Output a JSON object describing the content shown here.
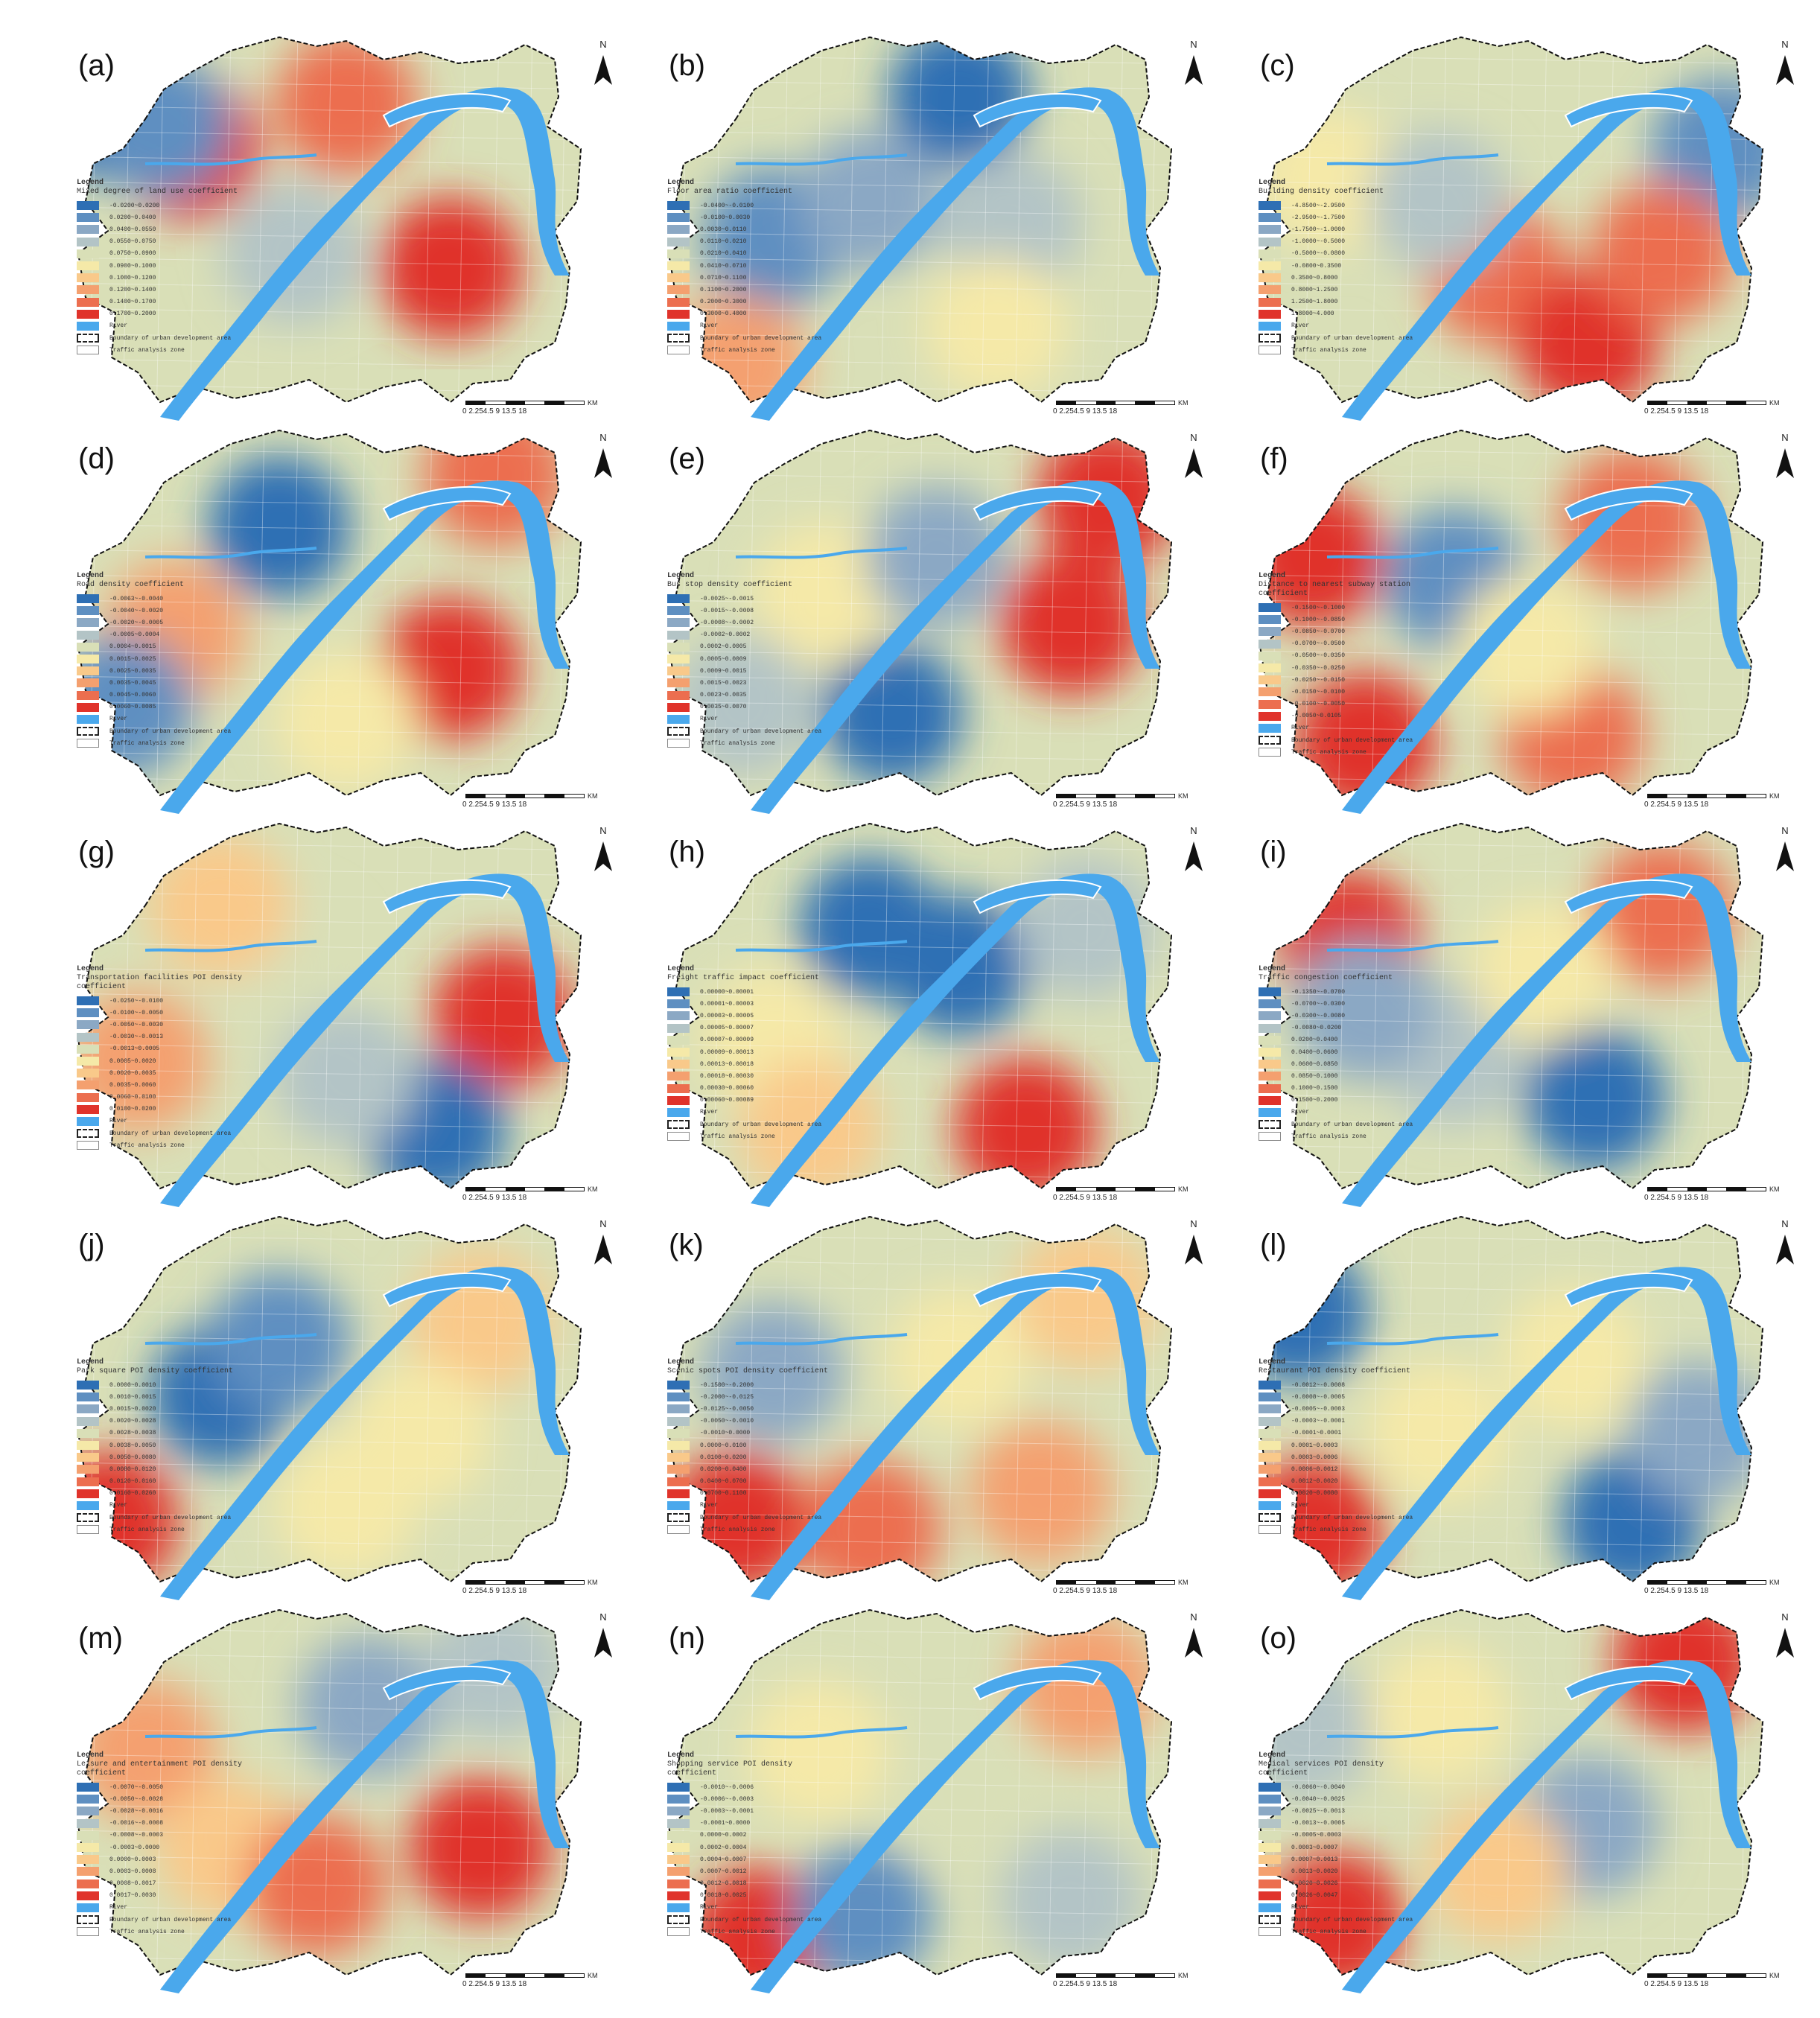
{
  "legend_heading": "Legend",
  "north_label": "N",
  "scale_ticks": "0 2.254.5    9    13.5   18",
  "scale_unit": "KM",
  "common_entries": {
    "river": "River",
    "boundary": "Boundary of urban development area",
    "zone": "Traffic analysis zone"
  },
  "colors": {
    "class_ramp": [
      "#2e6fb4",
      "#5e8fc1",
      "#8ba8c4",
      "#b3c4c6",
      "#d9dfb7",
      "#f5e9a8",
      "#f9c98a",
      "#f4a06f",
      "#ec6e4f",
      "#e0332b"
    ],
    "river": "#4aa8ec"
  },
  "panels": [
    {
      "label": "(a)",
      "title": "Mixed degree of land use coefficient",
      "classes": [
        "-0.0200~0.0200",
        "0.0200~0.0400",
        "0.0400~0.0550",
        "0.0550~0.0750",
        "0.0750~0.0900",
        "0.0900~0.1000",
        "0.1000~0.1200",
        "0.1200~0.1400",
        "0.1400~0.1700",
        "0.1700~0.2000"
      ]
    },
    {
      "label": "(b)",
      "title": "Floor area ratio coefficient",
      "classes": [
        "-0.0400~-0.0100",
        "-0.0100~0.0030",
        "0.0030~0.0110",
        "0.0110~0.0210",
        "0.0210~0.0410",
        "0.0410~0.0710",
        "0.0710~0.1100",
        "0.1100~0.2000",
        "0.2000~0.3000",
        "0.3000~0.4000"
      ]
    },
    {
      "label": "(c)",
      "title": "Building density coefficient",
      "classes": [
        "-4.8500~-2.9500",
        "-2.9500~-1.7500",
        "-1.7500~-1.0000",
        "-1.0000~-0.5000",
        "-0.5000~-0.0800",
        "-0.0800~0.3500",
        "0.3500~0.8000",
        "0.8000~1.2500",
        "1.2500~1.8000",
        "1.8000~4.000"
      ]
    },
    {
      "label": "(d)",
      "title": "Road density coefficient",
      "classes": [
        "-0.0063~-0.0040",
        "-0.0040~-0.0020",
        "-0.0020~-0.0005",
        "-0.0005~0.0004",
        "0.0004~0.0015",
        "0.0015~0.0025",
        "0.0025~0.0035",
        "0.0035~0.0045",
        "0.0045~0.0060",
        "0.0060~0.0085"
      ]
    },
    {
      "label": "(e)",
      "title": "Bus stop density coefficient",
      "classes": [
        "-0.0025~-0.0015",
        "-0.0015~-0.0008",
        "-0.0008~-0.0002",
        "-0.0002~0.0002",
        "0.0002~0.0005",
        "0.0005~0.0009",
        "0.0009~0.0015",
        "0.0015~0.0023",
        "0.0023~0.0035",
        "0.0035~0.0070"
      ]
    },
    {
      "label": "(f)",
      "title": "Distance to nearest subway station coefficient",
      "classes": [
        "-0.1500~-0.1000",
        "-0.1000~-0.0850",
        "-0.0850~-0.0700",
        "-0.0700~-0.0500",
        "-0.0500~-0.0350",
        "-0.0350~-0.0250",
        "-0.0250~-0.0150",
        "-0.0150~-0.0100",
        "-0.0100~-0.0050",
        "-0.0050~0.0105"
      ]
    },
    {
      "label": "(g)",
      "title": "Transportation facilities POI density coefficient",
      "classes": [
        "-0.0250~-0.0100",
        "-0.0100~-0.0050",
        "-0.0050~-0.0030",
        "-0.0030~-0.0013",
        "-0.0013~0.0005",
        "0.0005~0.0020",
        "0.0020~0.0035",
        "0.0035~0.0060",
        "0.0060~0.0100",
        "0.0100~0.0200"
      ]
    },
    {
      "label": "(h)",
      "title": "Freight traffic impact coefficient",
      "classes": [
        "0.00000~0.00001",
        "0.00001~0.00003",
        "0.00003~0.00005",
        "0.00005~0.00007",
        "0.00007~0.00009",
        "0.00009~0.00013",
        "0.00013~0.00018",
        "0.00018~0.00030",
        "0.00030~0.00060",
        "0.00060~0.00089"
      ]
    },
    {
      "label": "(i)",
      "title": "Traffic congestion coefficient",
      "classes": [
        "-0.1350~-0.0700",
        "-0.0700~-0.0300",
        "-0.0300~-0.0080",
        "-0.0080~0.0200",
        "0.0200~0.0400",
        "0.0400~0.0600",
        "0.0600~0.0850",
        "0.0850~0.1000",
        "0.1000~0.1500",
        "0.1500~0.2000"
      ]
    },
    {
      "label": "(j)",
      "title": "Park square POI density coefficient",
      "classes": [
        "0.0000~0.0010",
        "0.0010~0.0015",
        "0.0015~0.0020",
        "0.0020~0.0028",
        "0.0028~0.0038",
        "0.0038~0.0050",
        "0.0050~0.0080",
        "0.0080~0.0120",
        "0.0120~0.0160",
        "0.0160~0.0260"
      ]
    },
    {
      "label": "(k)",
      "title": "Scenic spots POI density coefficient",
      "classes": [
        "-0.1500~-0.2000",
        "-0.2000~-0.0125",
        "-0.0125~-0.0050",
        "-0.0050~-0.0010",
        "-0.0010~0.0000",
        "0.0000~0.0100",
        "0.0100~0.0200",
        "0.0200~0.0400",
        "0.0400~0.0700",
        "0.0700~0.1100"
      ]
    },
    {
      "label": "(l)",
      "title": "Restaurant POI density coefficient",
      "classes": [
        "-0.0012~-0.0008",
        "-0.0008~-0.0005",
        "-0.0005~-0.0003",
        "-0.0003~-0.0001",
        "-0.0001~0.0001",
        "0.0001~0.0003",
        "0.0003~0.0006",
        "0.0006~0.0012",
        "0.0012~0.0020",
        "0.0020~0.0080"
      ]
    },
    {
      "label": "(m)",
      "title": "Leisure and entertainment POI density coefficient",
      "classes": [
        "-0.0070~-0.0050",
        "-0.0050~-0.0028",
        "-0.0028~-0.0016",
        "-0.0016~-0.0008",
        "-0.0008~-0.0003",
        "-0.0003~0.0000",
        "0.0000~0.0003",
        "0.0003~0.0008",
        "0.0008~0.0017",
        "0.0017~0.0030"
      ]
    },
    {
      "label": "(n)",
      "title": "Shopping service POI density coefficient",
      "classes": [
        "-0.0010~-0.0006",
        "-0.0006~-0.0003",
        "-0.0003~-0.0001",
        "-0.0001~0.0000",
        "0.0000~0.0002",
        "0.0002~0.0004",
        "0.0004~0.0007",
        "0.0007~0.0012",
        "0.0012~0.0018",
        "0.0018~0.0025"
      ]
    },
    {
      "label": "(o)",
      "title": "Medical services POI density coefficient",
      "classes": [
        "-0.0060~-0.0040",
        "-0.0040~-0.0025",
        "-0.0025~-0.0013",
        "-0.0013~-0.0005",
        "-0.0005~0.0003",
        "0.0003~0.0007",
        "0.0007~0.0013",
        "0.0013~0.0020",
        "0.0020~0.0026",
        "0.0026~0.0047"
      ]
    }
  ]
}
